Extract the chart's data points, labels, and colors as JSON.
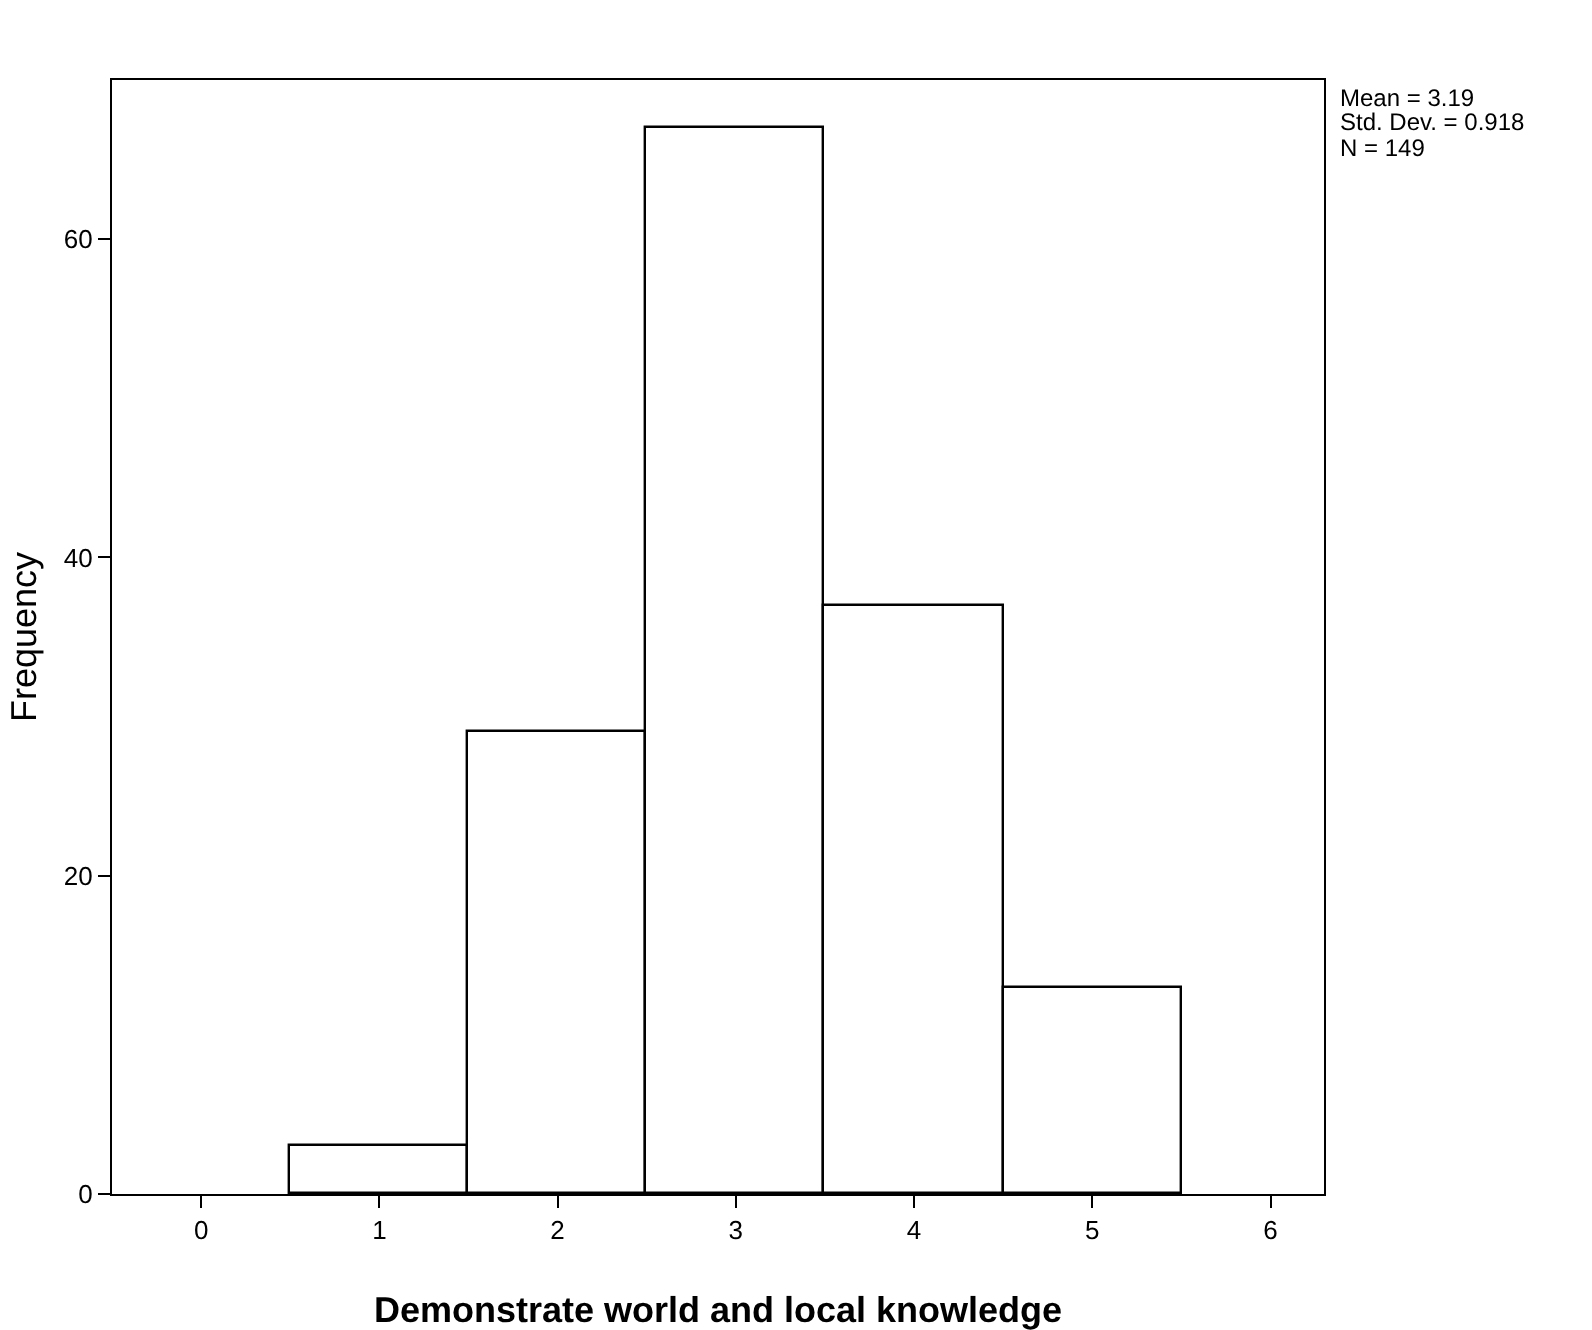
{
  "chart_data": {
    "type": "histogram",
    "xlabel": "Demonstrate world and local knowledge",
    "ylabel": "Frequency",
    "bins": [
      0.5,
      1.5,
      2.5,
      3.5,
      4.5,
      5.5
    ],
    "values": [
      3,
      29,
      67,
      37,
      13
    ],
    "color": "#ffffff",
    "xlim": [
      -0.5,
      6.3
    ],
    "xticks": [
      0,
      1,
      2,
      3,
      4,
      5,
      6
    ],
    "ylim": [
      0,
      70
    ],
    "yticks": [
      0,
      20,
      40,
      60
    ],
    "grid": false,
    "annotations": [
      "Mean = 3.19",
      "Std. Dev. = 0.918",
      "N = 149"
    ]
  }
}
